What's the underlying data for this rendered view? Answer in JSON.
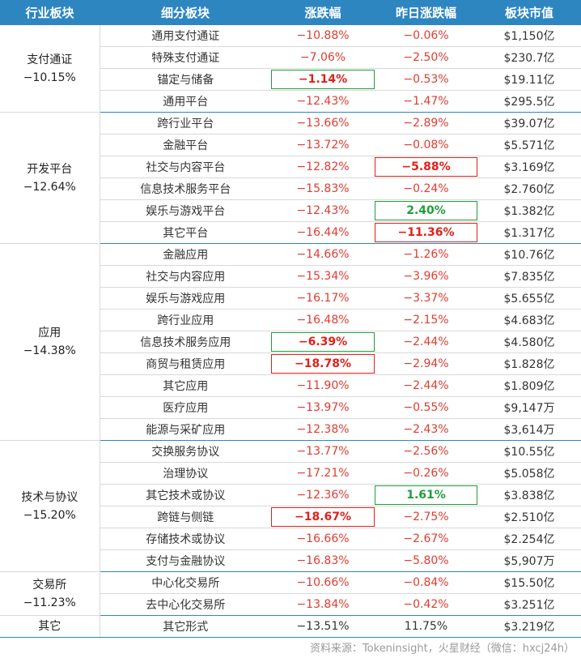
{
  "headers": [
    "行业板块",
    "细分板块",
    "涨跌幅",
    "昨日涨跌幅",
    "板块市值"
  ],
  "groups": [
    {
      "sector": "支付通证",
      "sector_change": "−10.15%",
      "rows": [
        {
          "sub": "通用支付通证",
          "chg": "−10.88%",
          "prev": "−0.06%",
          "cap": "$1,150亿",
          "chg_hl": "",
          "prev_hl": ""
        },
        {
          "sub": "特殊支付通证",
          "chg": "−7.06%",
          "prev": "−2.50%",
          "cap": "$230.7亿",
          "chg_hl": "",
          "prev_hl": ""
        },
        {
          "sub": "锚定与储备",
          "chg": "−1.14%",
          "prev": "−0.53%",
          "cap": "$19.11亿",
          "chg_hl": "red-green-box",
          "prev_hl": ""
        },
        {
          "sub": "通用平台",
          "chg": "−12.43%",
          "prev": "−1.47%",
          "cap": "$295.5亿",
          "chg_hl": "",
          "prev_hl": ""
        }
      ]
    },
    {
      "sector": "开发平台",
      "sector_change": "−12.64%",
      "rows": [
        {
          "sub": "跨行业平台",
          "chg": "−13.66%",
          "prev": "−2.89%",
          "cap": "$39.07亿",
          "chg_hl": "",
          "prev_hl": ""
        },
        {
          "sub": "金融平台",
          "chg": "−13.72%",
          "prev": "−0.08%",
          "cap": "$5.571亿",
          "chg_hl": "",
          "prev_hl": ""
        },
        {
          "sub": "社交与内容平台",
          "chg": "−12.82%",
          "prev": "−5.88%",
          "cap": "$3.169亿",
          "chg_hl": "",
          "prev_hl": "red"
        },
        {
          "sub": "信息技术服务平台",
          "chg": "−15.83%",
          "prev": "−0.24%",
          "cap": "$2.760亿",
          "chg_hl": "",
          "prev_hl": ""
        },
        {
          "sub": "娱乐与游戏平台",
          "chg": "−12.43%",
          "prev": "2.40%",
          "cap": "$1.382亿",
          "chg_hl": "",
          "prev_hl": "green"
        },
        {
          "sub": "其它平台",
          "chg": "−16.44%",
          "prev": "−11.36%",
          "cap": "$1.317亿",
          "chg_hl": "",
          "prev_hl": "red"
        }
      ]
    },
    {
      "sector": "应用",
      "sector_change": "−14.38%",
      "rows": [
        {
          "sub": "金融应用",
          "chg": "−14.66%",
          "prev": "−1.26%",
          "cap": "$10.76亿",
          "chg_hl": "",
          "prev_hl": ""
        },
        {
          "sub": "社交与内容应用",
          "chg": "−15.34%",
          "prev": "−3.96%",
          "cap": "$7.835亿",
          "chg_hl": "",
          "prev_hl": ""
        },
        {
          "sub": "娱乐与游戏应用",
          "chg": "−16.17%",
          "prev": "−3.37%",
          "cap": "$5.655亿",
          "chg_hl": "",
          "prev_hl": ""
        },
        {
          "sub": "跨行业应用",
          "chg": "−16.48%",
          "prev": "−2.15%",
          "cap": "$4.683亿",
          "chg_hl": "",
          "prev_hl": ""
        },
        {
          "sub": "信息技术服务应用",
          "chg": "−6.39%",
          "prev": "−2.44%",
          "cap": "$4.580亿",
          "chg_hl": "red-green-box",
          "prev_hl": ""
        },
        {
          "sub": "商贸与租赁应用",
          "chg": "−18.78%",
          "prev": "−2.94%",
          "cap": "$1.828亿",
          "chg_hl": "red",
          "prev_hl": ""
        },
        {
          "sub": "其它应用",
          "chg": "−11.90%",
          "prev": "−2.44%",
          "cap": "$1.809亿",
          "chg_hl": "",
          "prev_hl": ""
        },
        {
          "sub": "医疗应用",
          "chg": "−13.97%",
          "prev": "−0.55%",
          "cap": "$9,147万",
          "chg_hl": "",
          "prev_hl": ""
        },
        {
          "sub": "能源与采矿应用",
          "chg": "−12.38%",
          "prev": "−2.43%",
          "cap": "$3,614万",
          "chg_hl": "",
          "prev_hl": ""
        }
      ]
    },
    {
      "sector": "技术与协议",
      "sector_change": "−15.20%",
      "rows": [
        {
          "sub": "交换服务协议",
          "chg": "−13.77%",
          "prev": "−2.56%",
          "cap": "$10.55亿",
          "chg_hl": "",
          "prev_hl": ""
        },
        {
          "sub": "治理协议",
          "chg": "−17.21%",
          "prev": "−0.26%",
          "cap": "$5.058亿",
          "chg_hl": "",
          "prev_hl": ""
        },
        {
          "sub": "其它技术或协议",
          "chg": "−12.36%",
          "prev": "1.61%",
          "cap": "$3.838亿",
          "chg_hl": "",
          "prev_hl": "green"
        },
        {
          "sub": "跨链与侧链",
          "chg": "−18.67%",
          "prev": "−2.75%",
          "cap": "$2.510亿",
          "chg_hl": "red",
          "prev_hl": ""
        },
        {
          "sub": "存储技术或协议",
          "chg": "−16.66%",
          "prev": "−2.67%",
          "cap": "$2.254亿",
          "chg_hl": "",
          "prev_hl": ""
        },
        {
          "sub": "支付与金融协议",
          "chg": "−16.83%",
          "prev": "−5.80%",
          "cap": "$5,907万",
          "chg_hl": "",
          "prev_hl": ""
        }
      ]
    },
    {
      "sector": "交易所",
      "sector_change": "−11.23%",
      "rows": [
        {
          "sub": "中心化交易所",
          "chg": "−10.66%",
          "prev": "−0.84%",
          "cap": "$15.50亿",
          "chg_hl": "",
          "prev_hl": ""
        },
        {
          "sub": "去中心化交易所",
          "chg": "−13.84%",
          "prev": "−0.42%",
          "cap": "$3.251亿",
          "chg_hl": "",
          "prev_hl": ""
        }
      ]
    },
    {
      "sector": "其它",
      "sector_change": "",
      "rows": [
        {
          "sub": "其它形式",
          "chg": "−13.51%",
          "prev": "11.75%",
          "cap": "$3.219亿",
          "chg_hl": "",
          "prev_hl": "",
          "plain": true
        }
      ]
    }
  ],
  "source": "资料来源：Tokeninsight，火星财经（微信：hxcj24h）",
  "colors": {
    "header_bg": "#2e86c1",
    "negative": "#e03c31",
    "highlight_red": "#e0201b",
    "highlight_green": "#1e9e3a"
  }
}
